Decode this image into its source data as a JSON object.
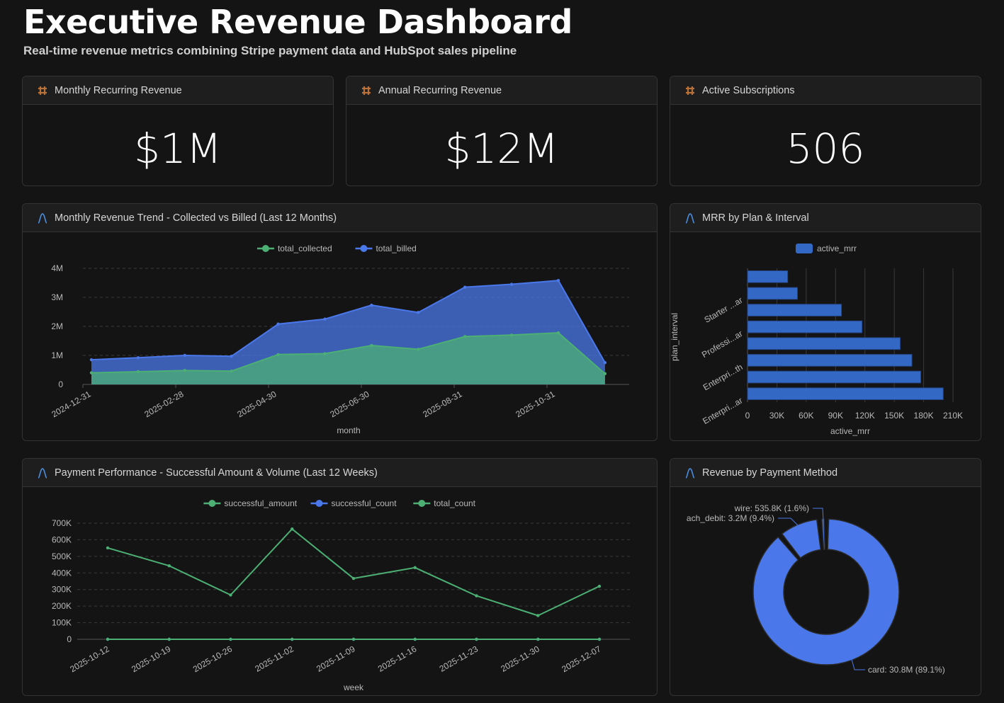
{
  "header": {
    "title": "Executive Revenue Dashboard",
    "subtitle": "Real-time revenue metrics combining Stripe payment data and HubSpot sales pipeline"
  },
  "colors": {
    "green": "#4caf74",
    "blue": "#4a78ea",
    "bar": "#3369c4",
    "kpi_icon": "#b9713a",
    "chart_icon": "#4a8fe0"
  },
  "kpis": [
    {
      "label": "Monthly Recurring Revenue",
      "value": "$1M",
      "icon": "hash-icon"
    },
    {
      "label": "Annual Recurring Revenue",
      "value": "$12M",
      "icon": "hash-icon"
    },
    {
      "label": "Active Subscriptions",
      "value": "506",
      "icon": "hash-icon"
    }
  ],
  "chart_data": [
    {
      "title": "Monthly Revenue Trend - Collected vs Billed (Last 12 Months)",
      "type": "area",
      "xlabel": "month",
      "ylabel": "",
      "x": [
        "2025-01",
        "2025-02",
        "2025-03",
        "2025-04",
        "2025-05",
        "2025-06",
        "2025-07",
        "2025-08",
        "2025-09",
        "2025-10",
        "2025-11",
        "2025-12"
      ],
      "x_ticks": [
        "2024-12-31",
        "2025-02-28",
        "2025-04-30",
        "2025-06-30",
        "2025-08-31",
        "2025-10-31"
      ],
      "y_ticks": [
        "0",
        "1M",
        "2M",
        "3M",
        "4M"
      ],
      "ylim": [
        0,
        4000000
      ],
      "grid": true,
      "legend": "top",
      "series": [
        {
          "name": "total_collected",
          "color": "#4caf74",
          "values": [
            400000,
            440000,
            480000,
            460000,
            1030000,
            1060000,
            1340000,
            1210000,
            1650000,
            1700000,
            1780000,
            370000
          ]
        },
        {
          "name": "total_billed",
          "color": "#4a78ea",
          "values": [
            850000,
            920000,
            1000000,
            970000,
            2080000,
            2250000,
            2730000,
            2480000,
            3350000,
            3450000,
            3580000,
            750000
          ]
        }
      ]
    },
    {
      "title": "MRR by Plan & Interval",
      "type": "bar",
      "orientation": "horizontal",
      "xlabel": "active_mrr",
      "ylabel": "plan_interval",
      "legend": "top",
      "categories": [
        "",
        "Starter ...ar",
        "",
        "Professi...ar",
        "",
        "Enterpri...th",
        "",
        "Enterpri...ar"
      ],
      "x_ticks": [
        "0",
        "30K",
        "60K",
        "90K",
        "120K",
        "150K",
        "180K",
        "210K"
      ],
      "xlim": [
        0,
        210000
      ],
      "series": [
        {
          "name": "active_mrr",
          "color": "#3369c4",
          "values": [
            41000,
            51000,
            96000,
            117000,
            156000,
            168000,
            177000,
            200000
          ]
        }
      ]
    },
    {
      "title": "Payment Performance - Successful Amount & Volume (Last 12 Weeks)",
      "type": "line",
      "xlabel": "week",
      "legend": "top",
      "x": [
        "2025-10-12",
        "2025-10-19",
        "2025-10-26",
        "2025-11-02",
        "2025-11-09",
        "2025-11-16",
        "2025-11-23",
        "2025-11-30",
        "2025-12-07"
      ],
      "y_ticks": [
        "0",
        "100K",
        "200K",
        "300K",
        "400K",
        "500K",
        "600K",
        "700K"
      ],
      "ylim": [
        0,
        700000
      ],
      "grid": true,
      "series": [
        {
          "name": "successful_amount",
          "color": "#4caf74",
          "values": [
            551000,
            443000,
            267000,
            665000,
            367000,
            432000,
            262000,
            143000,
            320000
          ]
        },
        {
          "name": "successful_count",
          "color": "#4a78ea",
          "values": [
            0,
            0,
            0,
            0,
            0,
            0,
            0,
            0,
            0
          ]
        },
        {
          "name": "total_count",
          "color": "#4caf74",
          "values": [
            0,
            0,
            0,
            0,
            0,
            0,
            0,
            0,
            0
          ]
        }
      ]
    },
    {
      "title": "Revenue by Payment Method",
      "type": "pie",
      "donut": true,
      "slices": [
        {
          "name": "card",
          "value": 30.8,
          "percent": 89.1,
          "label": "card: 30.8M (89.1%)"
        },
        {
          "name": "ach_debit",
          "value": 3.2,
          "percent": 9.4,
          "label": "ach_debit: 3.2M (9.4%)"
        },
        {
          "name": "wire",
          "value": 0.5358,
          "percent": 1.6,
          "label": "wire: 535.8K (1.6%)"
        }
      ],
      "color": "#4a78ea"
    }
  ]
}
